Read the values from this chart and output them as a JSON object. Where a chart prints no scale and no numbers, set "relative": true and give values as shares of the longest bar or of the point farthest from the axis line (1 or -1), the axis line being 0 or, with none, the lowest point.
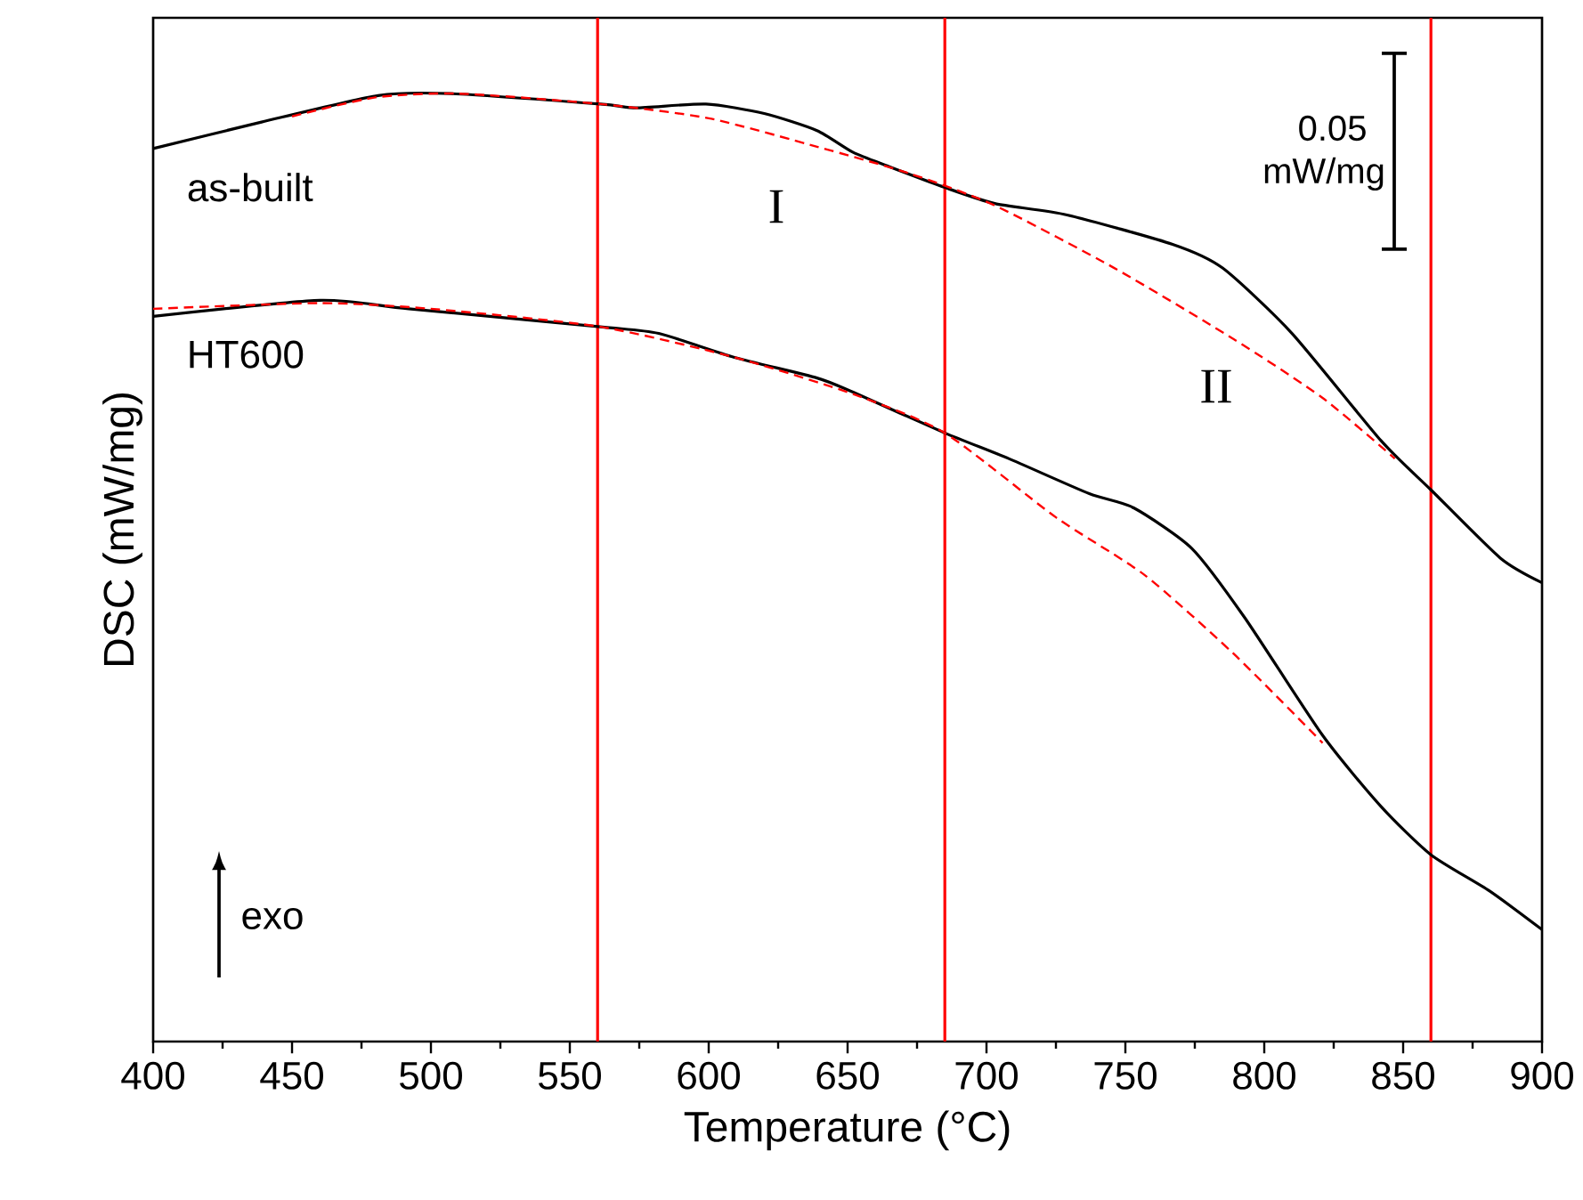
{
  "chart_data": {
    "type": "line",
    "relative": true,
    "xlabel": "Temperature (°C)",
    "ylabel": "DSC (mW/mg)",
    "xlim": [
      400,
      900
    ],
    "xticks": [
      400,
      450,
      500,
      550,
      600,
      650,
      700,
      750,
      800,
      850,
      900
    ],
    "tick_labels": "x",
    "grid": false,
    "marker": "none",
    "series": [
      {
        "name": "as-built",
        "color": "#000000",
        "line_style": "solid",
        "x": [
          400,
          439,
          481,
          507,
          561,
          574,
          599,
          620,
          639,
          652,
          665,
          685,
          703,
          729,
          767,
          785,
          810,
          842,
          860,
          885,
          900
        ],
        "values": [
          0.942,
          0.97,
          0.998,
          1.0,
          0.989,
          0.985,
          0.989,
          0.979,
          0.961,
          0.938,
          0.923,
          0.901,
          0.884,
          0.872,
          0.841,
          0.816,
          0.747,
          0.634,
          0.582,
          0.51,
          0.484
        ]
      },
      {
        "color": "#ff0000",
        "line_style": "dashed",
        "x": [
          450,
          480,
          510,
          561,
          600,
          639,
          672,
          703,
          746,
          789,
          821,
          847
        ],
        "values": [
          0.976,
          0.996,
          1.0,
          0.989,
          0.974,
          0.944,
          0.916,
          0.882,
          0.816,
          0.741,
          0.679,
          0.615
        ]
      },
      {
        "name": "HT600",
        "color": "#000000",
        "line_style": "solid",
        "x": [
          400,
          460,
          492,
          561,
          582,
          609,
          639,
          652,
          685,
          708,
          737,
          753,
          774,
          793,
          821,
          842,
          860,
          881,
          900
        ],
        "values": [
          0.765,
          0.782,
          0.773,
          0.754,
          0.747,
          0.722,
          0.7,
          0.685,
          0.642,
          0.615,
          0.578,
          0.563,
          0.52,
          0.447,
          0.323,
          0.248,
          0.197,
          0.159,
          0.118
        ]
      },
      {
        "color": "#ff0000",
        "line_style": "dashed",
        "x": [
          400,
          460,
          500,
          561,
          609,
          652,
          685,
          725,
          757,
          789,
          821
        ],
        "values": [
          0.773,
          0.779,
          0.773,
          0.754,
          0.722,
          0.683,
          0.642,
          0.553,
          0.492,
          0.409,
          0.315
        ]
      }
    ],
    "ref_lines": [
      {
        "axis": "x",
        "value": 560,
        "color": "#ff0000"
      },
      {
        "axis": "x",
        "value": 685,
        "color": "#ff0000"
      },
      {
        "axis": "x",
        "value": 860,
        "color": "#ff0000"
      }
    ],
    "annotations": [
      "I",
      "II",
      "0.05 mW/mg",
      "exo"
    ]
  }
}
